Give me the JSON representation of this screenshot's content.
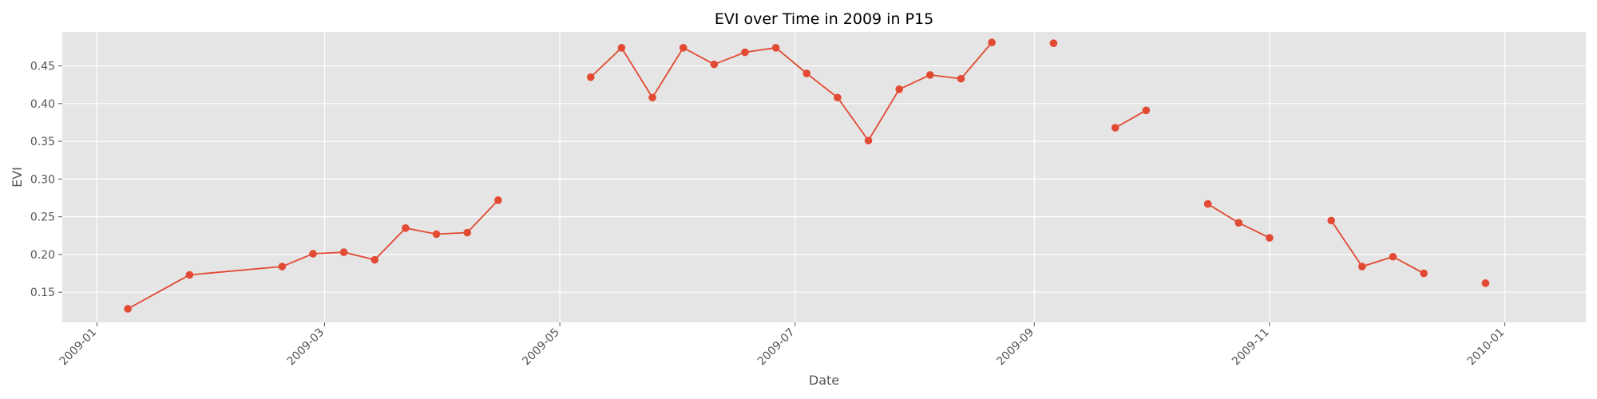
{
  "chart_data": {
    "type": "line",
    "title": "EVI over Time in 2009 in P15",
    "xlabel": "Date",
    "ylabel": "EVI",
    "grid": true,
    "marker": "circle",
    "color": "#E24A33",
    "background": "#E5E5E5",
    "xlim": [
      "2008-12-23",
      "2010-01-22"
    ],
    "ylim": [
      0.11,
      0.495
    ],
    "x_ticks": [
      "2009-01",
      "2009-03",
      "2009-05",
      "2009-07",
      "2009-09",
      "2009-11",
      "2010-01"
    ],
    "y_ticks": [
      "0.15",
      "0.20",
      "0.25",
      "0.30",
      "0.35",
      "0.40",
      "0.45"
    ],
    "series": [
      {
        "points": [
          {
            "x": "2009-01-09",
            "y": 0.128
          },
          {
            "x": "2009-01-25",
            "y": 0.173
          },
          {
            "x": "2009-02-18",
            "y": 0.184
          },
          {
            "x": "2009-02-26",
            "y": 0.201
          },
          {
            "x": "2009-03-06",
            "y": 0.203
          },
          {
            "x": "2009-03-14",
            "y": 0.193
          },
          {
            "x": "2009-03-22",
            "y": 0.235
          },
          {
            "x": "2009-03-30",
            "y": 0.227
          },
          {
            "x": "2009-04-07",
            "y": 0.229
          },
          {
            "x": "2009-04-15",
            "y": 0.272
          },
          {
            "x": null,
            "y": null
          },
          {
            "x": "2009-05-09",
            "y": 0.435
          },
          {
            "x": "2009-05-17",
            "y": 0.474
          },
          {
            "x": "2009-05-25",
            "y": 0.408
          },
          {
            "x": "2009-06-02",
            "y": 0.474
          },
          {
            "x": "2009-06-10",
            "y": 0.452
          },
          {
            "x": "2009-06-18",
            "y": 0.468
          },
          {
            "x": "2009-06-26",
            "y": 0.474
          },
          {
            "x": "2009-07-04",
            "y": 0.44
          },
          {
            "x": "2009-07-12",
            "y": 0.408
          },
          {
            "x": "2009-07-20",
            "y": 0.351
          },
          {
            "x": "2009-07-28",
            "y": 0.419
          },
          {
            "x": "2009-08-05",
            "y": 0.438
          },
          {
            "x": "2009-08-13",
            "y": 0.433
          },
          {
            "x": "2009-08-21",
            "y": 0.481
          },
          {
            "x": null,
            "y": null
          },
          {
            "x": "2009-09-06",
            "y": 0.48
          },
          {
            "x": null,
            "y": null
          },
          {
            "x": "2009-09-22",
            "y": 0.368
          },
          {
            "x": "2009-09-30",
            "y": 0.391
          },
          {
            "x": null,
            "y": null
          },
          {
            "x": "2009-10-16",
            "y": 0.267
          },
          {
            "x": "2009-10-24",
            "y": 0.242
          },
          {
            "x": "2009-11-01",
            "y": 0.222
          },
          {
            "x": null,
            "y": null
          },
          {
            "x": "2009-11-17",
            "y": 0.245
          },
          {
            "x": "2009-11-25",
            "y": 0.184
          },
          {
            "x": "2009-12-03",
            "y": 0.197
          },
          {
            "x": "2009-12-11",
            "y": 0.175
          },
          {
            "x": null,
            "y": null
          },
          {
            "x": "2009-12-27",
            "y": 0.162
          }
        ]
      }
    ]
  }
}
